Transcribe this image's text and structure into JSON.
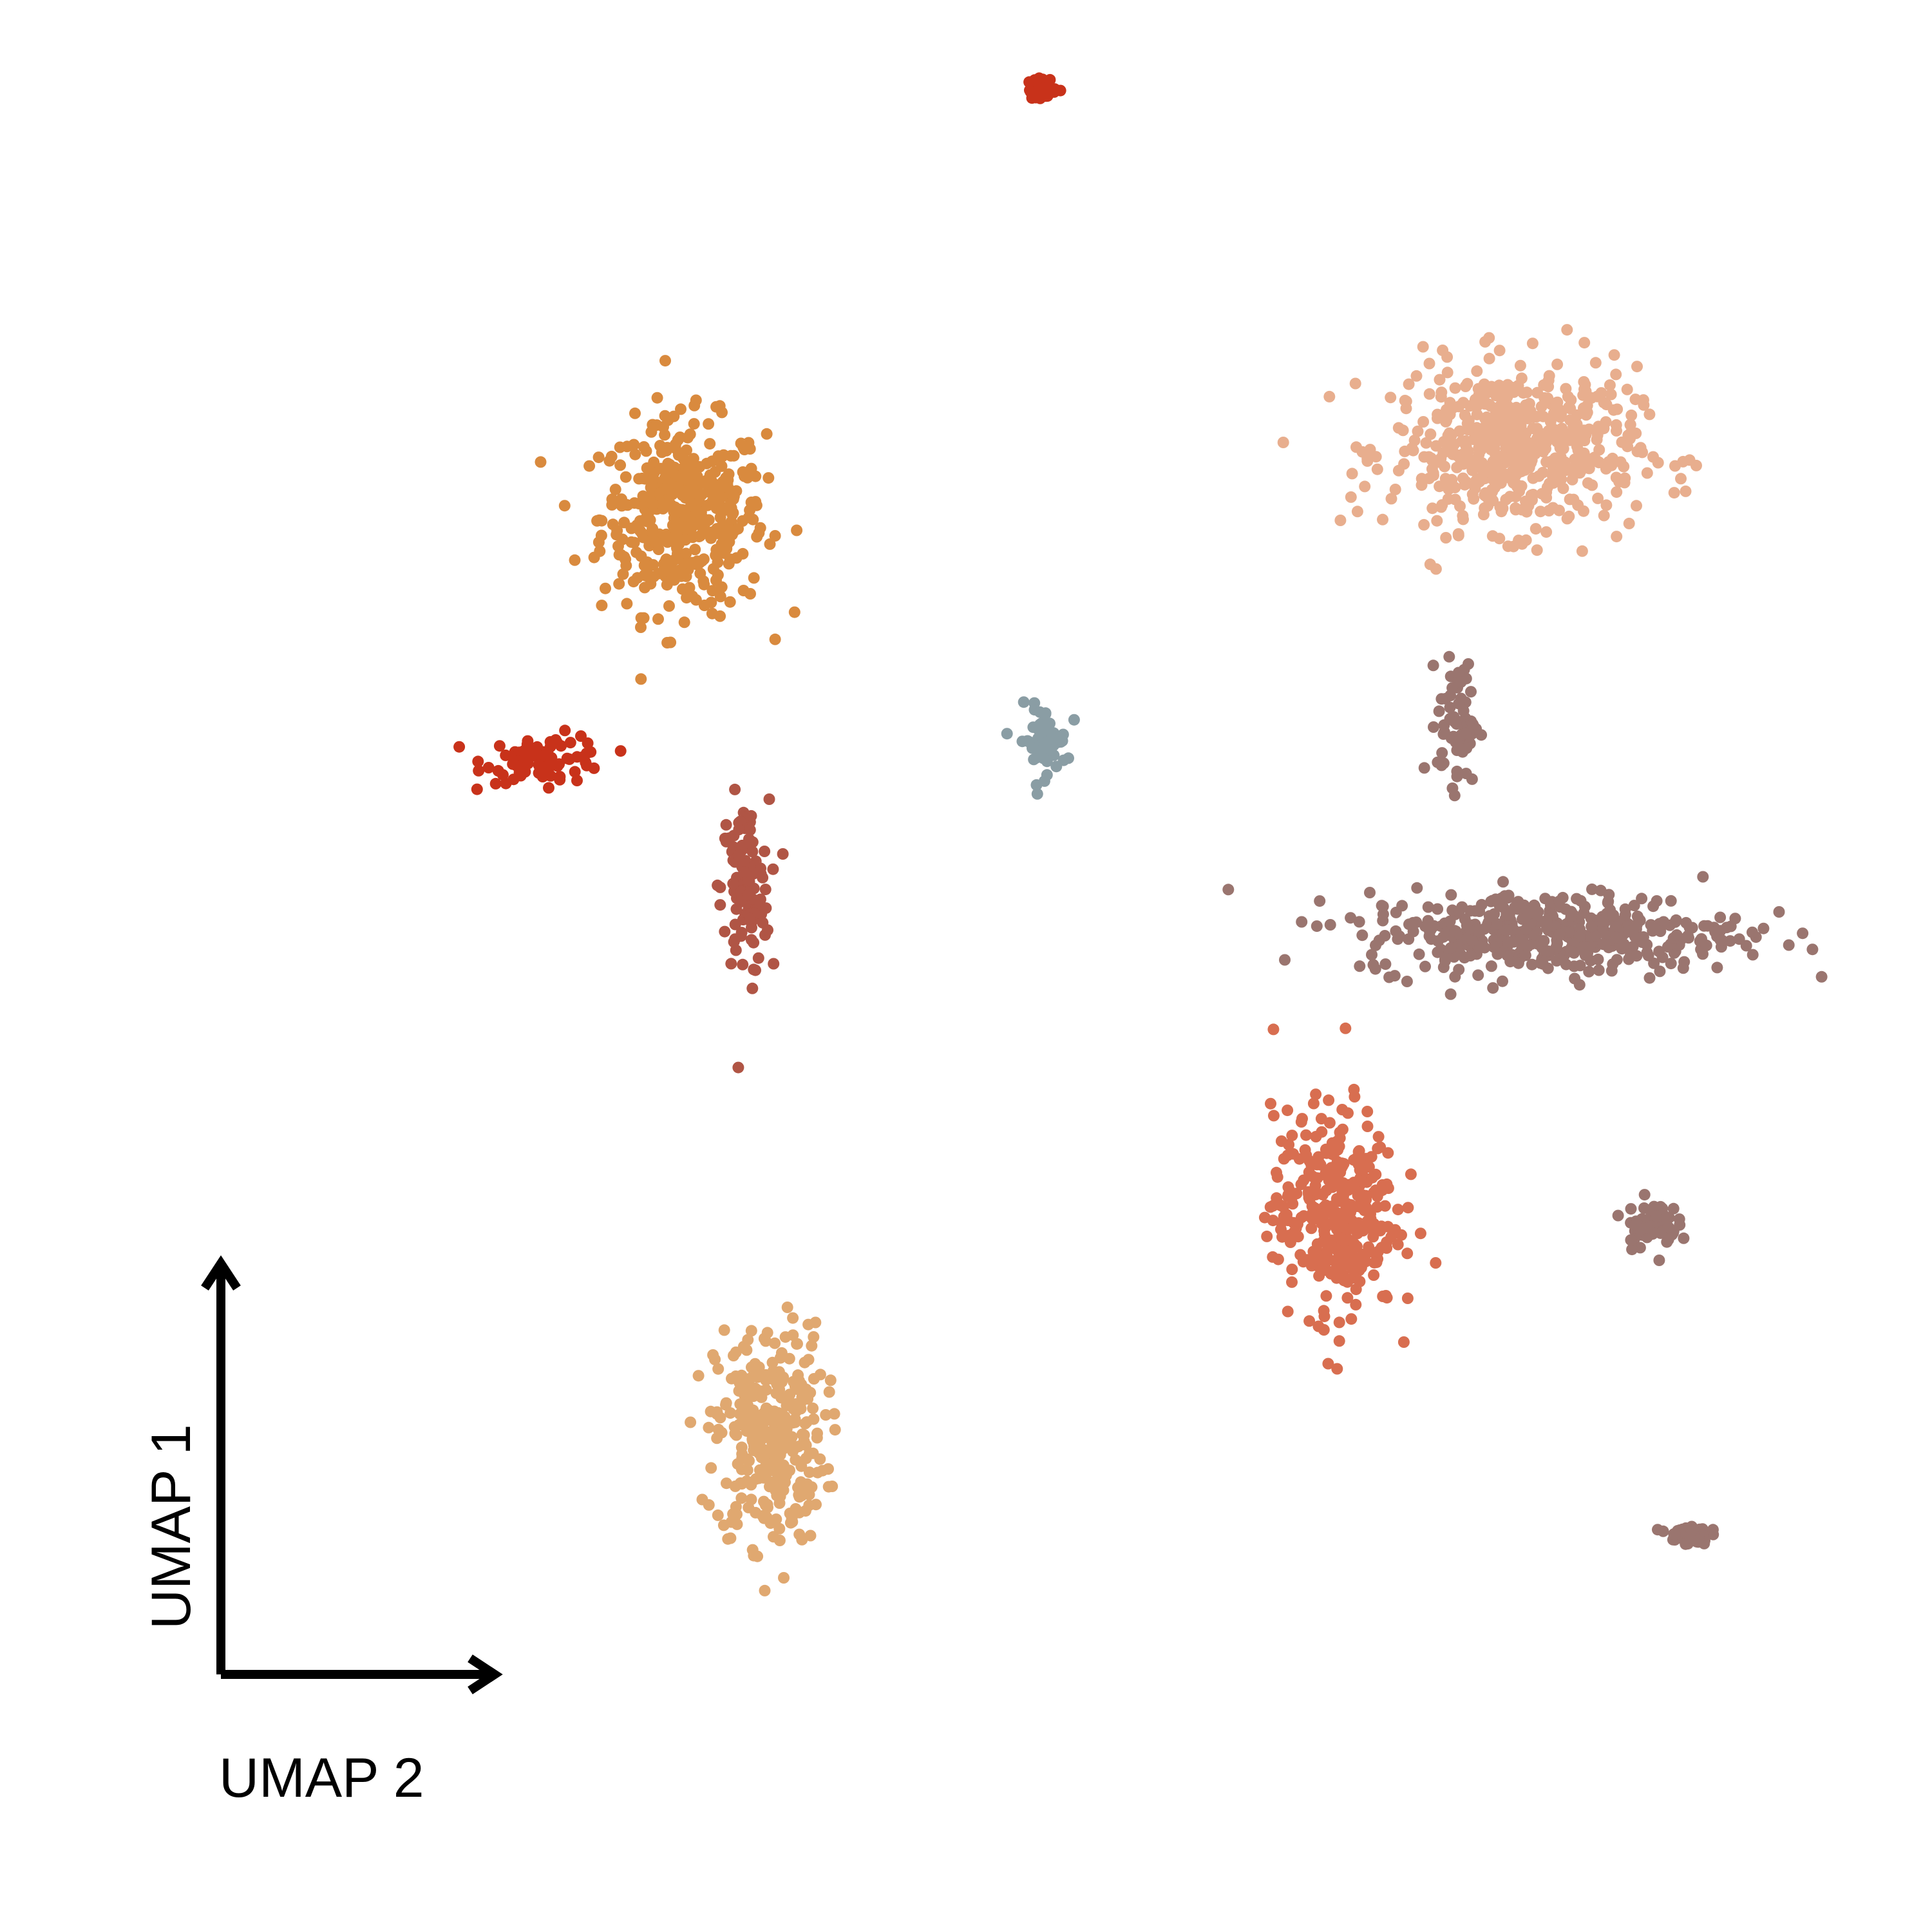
{
  "chart_data": {
    "type": "scatter",
    "title": "",
    "xlabel": "UMAP 2",
    "ylabel": "UMAP 1",
    "grid": false,
    "legend": "none",
    "clusters": [
      {
        "color": "#d98a3e",
        "center": [
          -5.6,
          6.2
        ],
        "spread": [
          1.2,
          1.4
        ]
      },
      {
        "color": "#c8321a",
        "center": [
          -7.8,
          2.3
        ],
        "spread": [
          0.9,
          0.35
        ]
      },
      {
        "color": "#b05545",
        "center": [
          -4.6,
          0.2
        ],
        "spread": [
          0.35,
          1.3
        ]
      },
      {
        "color": "#e0a870",
        "center": [
          -4.2,
          -8.6
        ],
        "spread": [
          0.8,
          1.6
        ]
      },
      {
        "color": "#8a9da4",
        "center": [
          0.2,
          2.6
        ],
        "spread": [
          0.35,
          0.5
        ]
      },
      {
        "color": "#e8ae8e",
        "center": [
          7.8,
          7.3
        ],
        "spread": [
          1.8,
          1.2
        ]
      },
      {
        "color": "#9a756f",
        "center": [
          6.9,
          2.9
        ],
        "spread": [
          0.3,
          0.9
        ]
      },
      {
        "color": "#9a756f",
        "center": [
          8.4,
          -0.5
        ],
        "spread": [
          2.8,
          0.6
        ]
      },
      {
        "color": "#d86e50",
        "center": [
          4.9,
          -5.0
        ],
        "spread": [
          0.9,
          1.5
        ]
      },
      {
        "color": "#c8321a",
        "center": [
          0.2,
          13.1
        ],
        "spread": [
          0.2,
          0.15
        ]
      },
      {
        "color": "#9a756f",
        "center": [
          10.0,
          -5.2
        ],
        "spread": [
          0.4,
          0.35
        ]
      },
      {
        "color": "#9a756f",
        "center": [
          10.6,
          -10.2
        ],
        "spread": [
          0.3,
          0.15
        ]
      }
    ],
    "xlim": [
      -13.5,
      13.5
    ],
    "ylim": [
      -13.5,
      13.5
    ]
  }
}
